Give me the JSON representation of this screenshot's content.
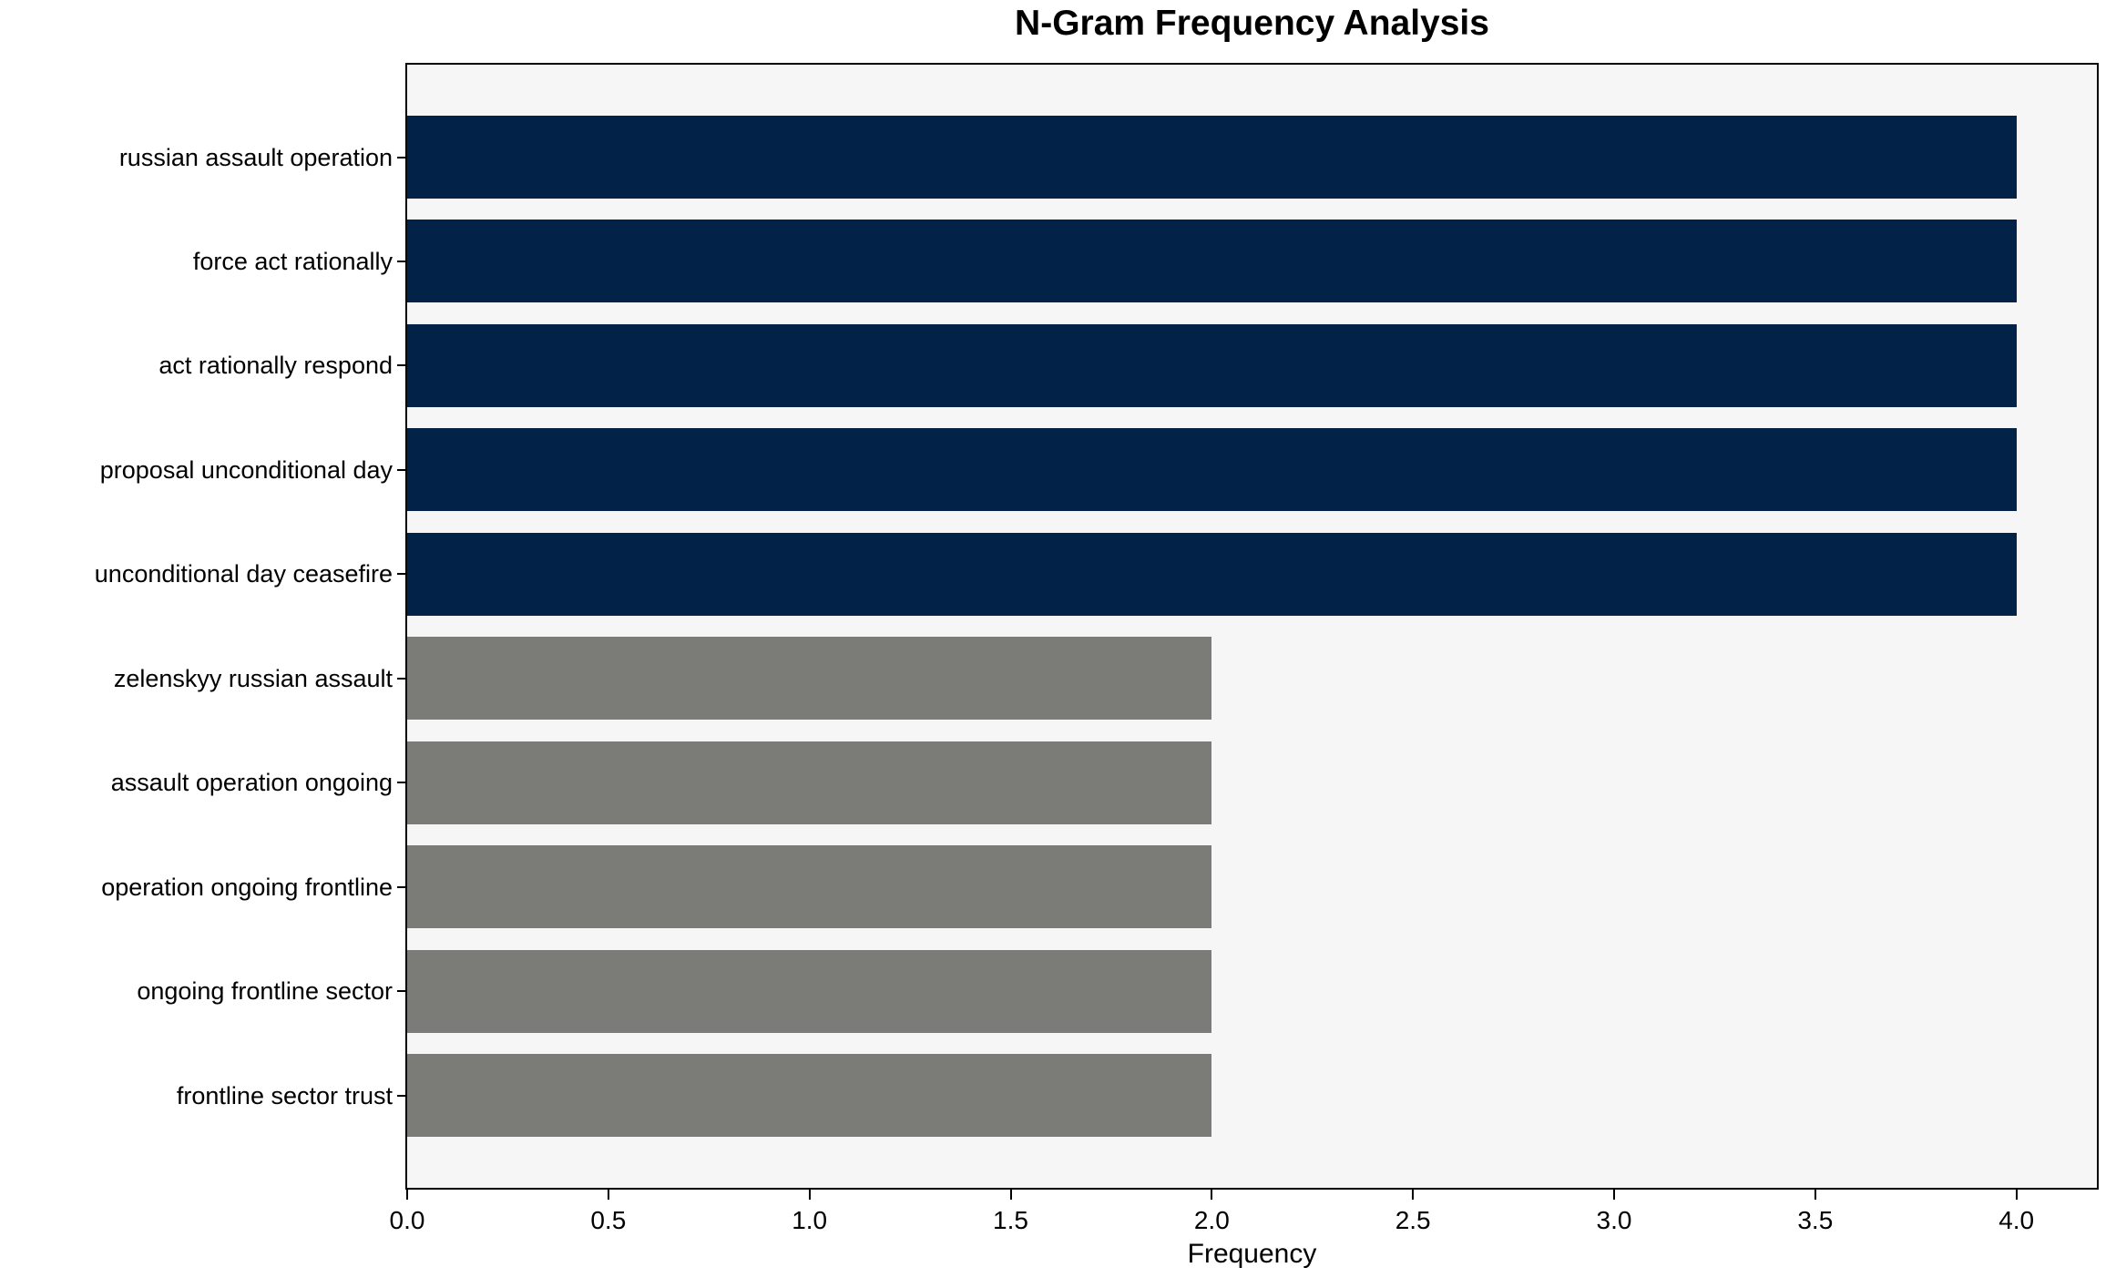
{
  "figure": {
    "title": "N-Gram Frequency Analysis",
    "xlabel": "Frequency"
  },
  "chart_data": {
    "type": "bar",
    "orientation": "horizontal",
    "title": "N-Gram Frequency Analysis",
    "xlabel": "Frequency",
    "ylabel": "",
    "categories": [
      "russian assault operation",
      "force act rationally",
      "act rationally respond",
      "proposal unconditional day",
      "unconditional day ceasefire",
      "zelenskyy russian assault",
      "assault operation ongoing",
      "operation ongoing frontline",
      "ongoing frontline sector",
      "frontline sector trust"
    ],
    "values": [
      4,
      4,
      4,
      4,
      4,
      2,
      2,
      2,
      2,
      2
    ],
    "bar_colors": [
      "#032248",
      "#032248",
      "#032248",
      "#032248",
      "#032248",
      "#7b7b78",
      "#7b7b78",
      "#7b7b78",
      "#7b7b78",
      "#7b7b78"
    ],
    "xlim": [
      0,
      4.2
    ],
    "x_ticks": [
      0.0,
      0.5,
      1.0,
      1.5,
      2.0,
      2.5,
      3.0,
      3.5,
      4.0
    ],
    "x_tick_labels": [
      "0.0",
      "0.5",
      "1.0",
      "1.5",
      "2.0",
      "2.5",
      "3.0",
      "3.5",
      "4.0"
    ],
    "grid": false,
    "legend": null,
    "colors": {
      "high_frequency_bar": "#032248",
      "low_frequency_bar": "#7b7b78",
      "plot_background": "#f6f6f7",
      "figure_background": "#ffffff",
      "spine": "#000000",
      "text": "#000000"
    }
  }
}
